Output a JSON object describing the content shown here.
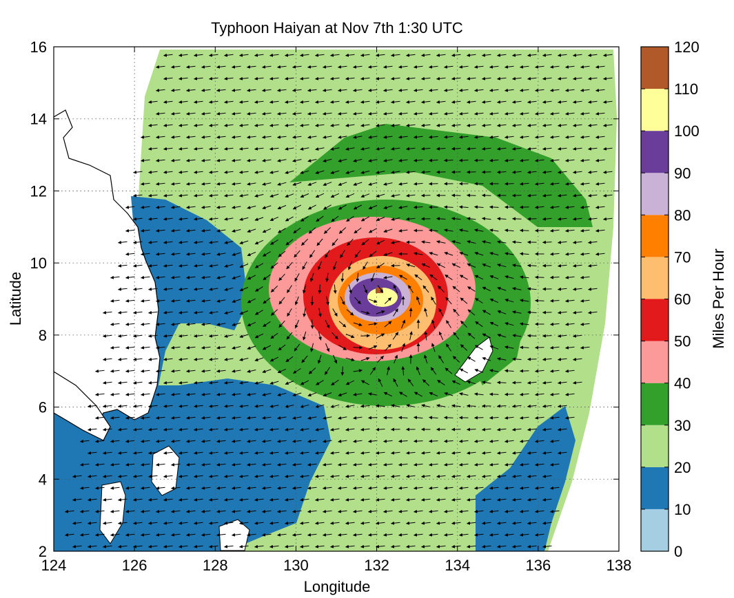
{
  "title": "Typhoon Haiyan at Nov 7th 1:30 UTC",
  "xlabel": "Longitude",
  "ylabel": "Latitude",
  "x_ticks": [
    "124",
    "126",
    "128",
    "130",
    "132",
    "134",
    "136",
    "138"
  ],
  "y_ticks": [
    "2",
    "4",
    "6",
    "8",
    "10",
    "12",
    "14",
    "16"
  ],
  "colorbar": {
    "label": "Miles Per Hour",
    "ticks": [
      "0",
      "10",
      "20",
      "30",
      "40",
      "50",
      "60",
      "70",
      "80",
      "90",
      "100",
      "110",
      "120"
    ],
    "colors": [
      "#a6cee3",
      "#1f78b4",
      "#b2df8a",
      "#33a02c",
      "#fb9a99",
      "#e31a1c",
      "#fdbf6f",
      "#ff7f00",
      "#cab2d6",
      "#6a3d9a",
      "#ffff99",
      "#b15928"
    ]
  },
  "chart_data": {
    "type": "heatmap",
    "title": "Typhoon Haiyan at Nov 7th 1:30 UTC",
    "xlabel": "Longitude",
    "ylabel": "Latitude",
    "xlim": [
      124,
      138
    ],
    "ylim": [
      2,
      16
    ],
    "grid": true,
    "storm_center": {
      "lon": 132.2,
      "lat": 9.3
    },
    "peak_wind_mph": 110,
    "colorbar_range": [
      0,
      120
    ],
    "colorbar_step": 10
  }
}
